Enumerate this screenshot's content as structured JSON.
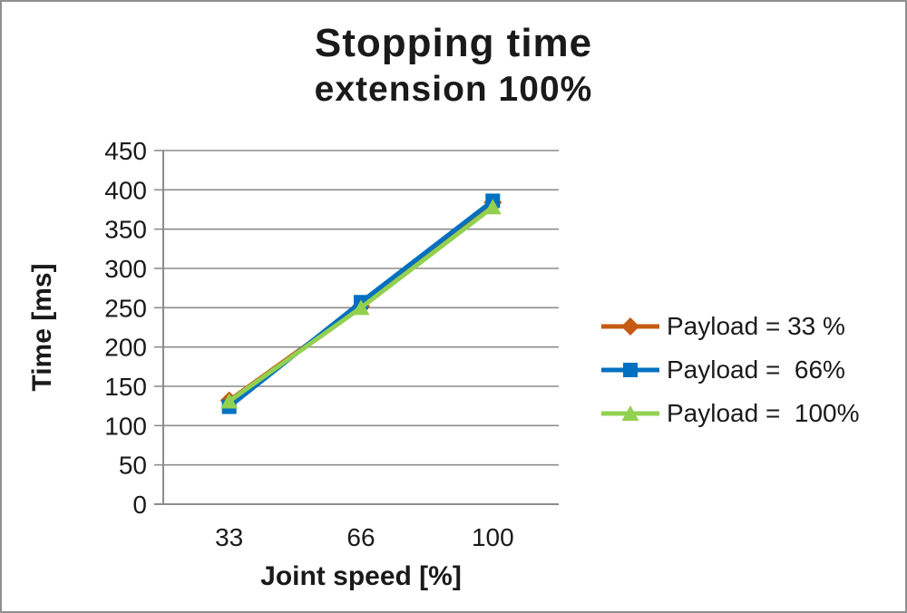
{
  "title": "Stopping time",
  "subtitle": "extension 100%",
  "chart_data": {
    "type": "line",
    "categories": [
      "33",
      "66",
      "100"
    ],
    "series": [
      {
        "name": "Payload = 33 %",
        "marker": "diamond",
        "color": "#C55A11",
        "values": [
          132,
          252,
          384
        ]
      },
      {
        "name": "Payload =  66%",
        "marker": "square",
        "color": "#0070C0",
        "values": [
          124,
          257,
          386
        ]
      },
      {
        "name": "Payload =  100%",
        "marker": "triangle",
        "color": "#92D050",
        "values": [
          131,
          250,
          378
        ]
      }
    ],
    "xlabel": "Joint speed [%]",
    "ylabel": "Time [ms]",
    "ylim": [
      0,
      450
    ],
    "ytick_step": 50,
    "yticks": [
      0,
      50,
      100,
      150,
      200,
      250,
      300,
      350,
      400,
      450
    ],
    "grid": true,
    "legend_position": "right",
    "gridline_color": "#8c8c8c",
    "axis_color": "#8c8c8c",
    "text_color": "#1a1a1a"
  }
}
